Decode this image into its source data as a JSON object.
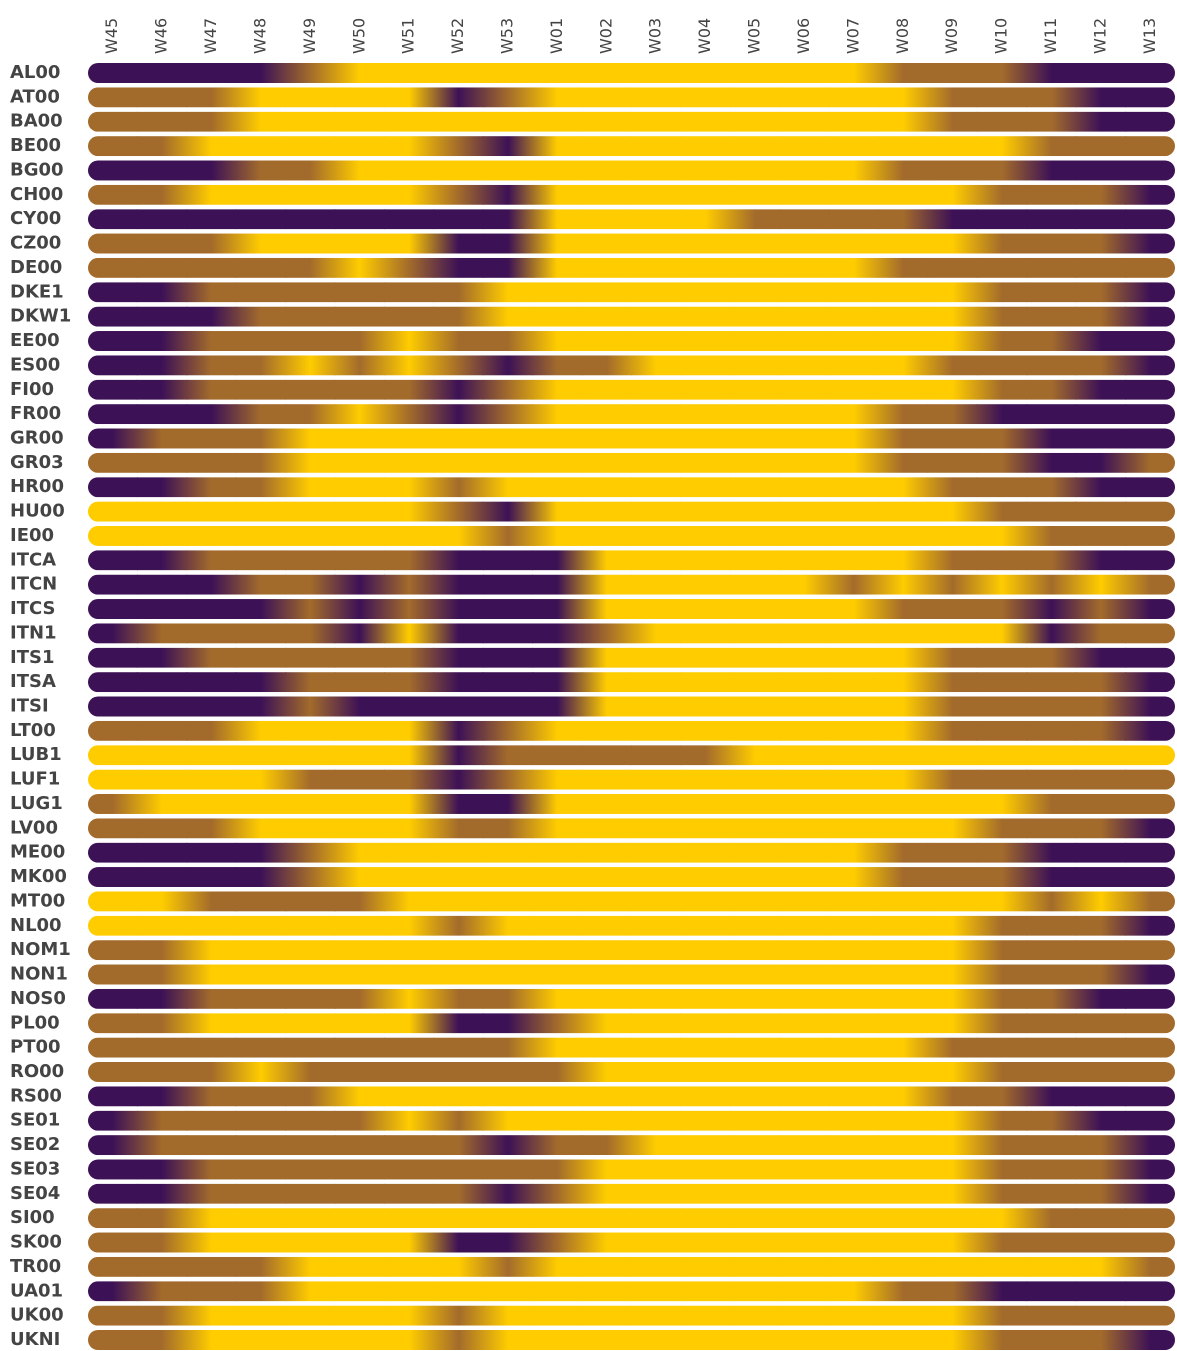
{
  "chart_data": {
    "type": "heatmap",
    "columns": [
      "W45",
      "W46",
      "W47",
      "W48",
      "W49",
      "W50",
      "W51",
      "W52",
      "W53",
      "W01",
      "W02",
      "W03",
      "W04",
      "W05",
      "W06",
      "W07",
      "W08",
      "W09",
      "W10",
      "W11",
      "W12",
      "W13"
    ],
    "rows": [
      "AL00",
      "AT00",
      "BA00",
      "BE00",
      "BG00",
      "CH00",
      "CY00",
      "CZ00",
      "DE00",
      "DKE1",
      "DKW1",
      "EE00",
      "ES00",
      "FI00",
      "FR00",
      "GR00",
      "GR03",
      "HR00",
      "HU00",
      "IE00",
      "ITCA",
      "ITCN",
      "ITCS",
      "ITN1",
      "ITS1",
      "ITSA",
      "ITSI",
      "LT00",
      "LUB1",
      "LUF1",
      "LUG1",
      "LV00",
      "ME00",
      "MK00",
      "MT00",
      "NL00",
      "NOM1",
      "NON1",
      "NOS0",
      "PL00",
      "PT00",
      "RO00",
      "RS00",
      "SE01",
      "SE02",
      "SE03",
      "SE04",
      "SI00",
      "SK00",
      "TR00",
      "UA01",
      "UK00",
      "UKNI"
    ],
    "colors": [
      "#3d1156",
      "#a36b2b",
      "#ffcc00"
    ],
    "values": [
      [
        0,
        0,
        0,
        0,
        1,
        2,
        2,
        2,
        2,
        2,
        2,
        2,
        2,
        2,
        2,
        2,
        1,
        1,
        1,
        0,
        0,
        0
      ],
      [
        1,
        1,
        1,
        2,
        2,
        2,
        2,
        0,
        1,
        2,
        2,
        2,
        2,
        2,
        2,
        2,
        2,
        1,
        1,
        1,
        0,
        0
      ],
      [
        1,
        1,
        1,
        2,
        2,
        2,
        2,
        2,
        2,
        2,
        2,
        2,
        2,
        2,
        2,
        2,
        2,
        1,
        1,
        1,
        0,
        0
      ],
      [
        1,
        1,
        2,
        2,
        2,
        2,
        2,
        1,
        0,
        2,
        2,
        2,
        2,
        2,
        2,
        2,
        2,
        2,
        2,
        1,
        1,
        1
      ],
      [
        0,
        0,
        0,
        1,
        1,
        2,
        2,
        2,
        2,
        2,
        2,
        2,
        2,
        2,
        2,
        2,
        1,
        1,
        1,
        0,
        0,
        0
      ],
      [
        1,
        1,
        2,
        2,
        2,
        2,
        2,
        1,
        0,
        2,
        2,
        2,
        2,
        2,
        2,
        2,
        2,
        2,
        1,
        1,
        1,
        0
      ],
      [
        0,
        0,
        0,
        0,
        0,
        0,
        0,
        0,
        0,
        2,
        2,
        2,
        2,
        1,
        1,
        1,
        1,
        0,
        0,
        0,
        0,
        0
      ],
      [
        1,
        1,
        1,
        2,
        2,
        2,
        2,
        0,
        0,
        2,
        2,
        2,
        2,
        2,
        2,
        2,
        2,
        2,
        1,
        1,
        1,
        0
      ],
      [
        1,
        1,
        1,
        1,
        1,
        2,
        1,
        0,
        0,
        2,
        2,
        2,
        2,
        2,
        2,
        2,
        1,
        1,
        1,
        1,
        1,
        1
      ],
      [
        0,
        0,
        1,
        1,
        1,
        1,
        1,
        1,
        2,
        2,
        2,
        2,
        2,
        2,
        2,
        2,
        2,
        2,
        1,
        1,
        1,
        0
      ],
      [
        0,
        0,
        0,
        1,
        1,
        1,
        1,
        1,
        2,
        2,
        2,
        2,
        2,
        2,
        2,
        2,
        2,
        2,
        1,
        1,
        1,
        0
      ],
      [
        0,
        0,
        1,
        1,
        1,
        1,
        2,
        1,
        1,
        2,
        2,
        2,
        2,
        2,
        2,
        2,
        2,
        2,
        1,
        1,
        0,
        0
      ],
      [
        0,
        0,
        1,
        1,
        2,
        1,
        2,
        1,
        0,
        1,
        1,
        2,
        2,
        2,
        2,
        2,
        2,
        1,
        1,
        1,
        1,
        0
      ],
      [
        0,
        0,
        1,
        1,
        1,
        1,
        1,
        0,
        1,
        2,
        2,
        2,
        2,
        2,
        2,
        2,
        2,
        2,
        1,
        1,
        0,
        0
      ],
      [
        0,
        0,
        0,
        1,
        1,
        2,
        1,
        0,
        1,
        2,
        2,
        2,
        2,
        2,
        2,
        2,
        1,
        1,
        0,
        0,
        0,
        0
      ],
      [
        0,
        1,
        1,
        1,
        2,
        2,
        2,
        2,
        2,
        2,
        2,
        2,
        2,
        2,
        2,
        2,
        1,
        1,
        1,
        0,
        0,
        0
      ],
      [
        1,
        1,
        1,
        1,
        2,
        2,
        2,
        2,
        2,
        2,
        2,
        2,
        2,
        2,
        2,
        2,
        1,
        1,
        1,
        0,
        0,
        1
      ],
      [
        0,
        0,
        1,
        1,
        2,
        2,
        2,
        1,
        2,
        2,
        2,
        2,
        2,
        2,
        2,
        2,
        2,
        1,
        1,
        1,
        0,
        0
      ],
      [
        2,
        2,
        2,
        2,
        2,
        2,
        2,
        1,
        0,
        2,
        2,
        2,
        2,
        2,
        2,
        2,
        2,
        2,
        1,
        1,
        1,
        1
      ],
      [
        2,
        2,
        2,
        2,
        2,
        2,
        2,
        2,
        1,
        2,
        2,
        2,
        2,
        2,
        2,
        2,
        2,
        2,
        2,
        1,
        1,
        1
      ],
      [
        0,
        0,
        1,
        1,
        1,
        1,
        1,
        0,
        0,
        0,
        2,
        2,
        2,
        2,
        2,
        2,
        2,
        1,
        1,
        1,
        0,
        0
      ],
      [
        0,
        0,
        0,
        1,
        1,
        0,
        1,
        0,
        0,
        0,
        2,
        2,
        2,
        2,
        2,
        1,
        2,
        1,
        2,
        1,
        2,
        1
      ],
      [
        0,
        0,
        0,
        0,
        1,
        0,
        1,
        0,
        0,
        0,
        2,
        2,
        2,
        2,
        2,
        2,
        1,
        1,
        1,
        0,
        1,
        0
      ],
      [
        0,
        1,
        1,
        1,
        1,
        0,
        2,
        0,
        0,
        0,
        1,
        2,
        2,
        2,
        2,
        2,
        2,
        2,
        2,
        0,
        1,
        1
      ],
      [
        0,
        0,
        1,
        1,
        1,
        1,
        1,
        0,
        0,
        0,
        2,
        2,
        2,
        2,
        2,
        2,
        2,
        1,
        1,
        1,
        0,
        0
      ],
      [
        0,
        0,
        0,
        0,
        1,
        1,
        1,
        0,
        0,
        0,
        2,
        2,
        2,
        2,
        2,
        2,
        2,
        1,
        1,
        1,
        1,
        0
      ],
      [
        0,
        0,
        0,
        0,
        1,
        0,
        0,
        0,
        0,
        0,
        2,
        2,
        2,
        2,
        2,
        2,
        2,
        1,
        1,
        1,
        1,
        0
      ],
      [
        1,
        1,
        1,
        2,
        2,
        2,
        2,
        0,
        1,
        2,
        2,
        2,
        2,
        2,
        2,
        2,
        2,
        1,
        1,
        1,
        1,
        0
      ],
      [
        2,
        2,
        2,
        2,
        2,
        2,
        2,
        0,
        1,
        1,
        1,
        1,
        1,
        2,
        2,
        2,
        2,
        2,
        2,
        2,
        2,
        2
      ],
      [
        2,
        2,
        2,
        2,
        1,
        1,
        1,
        0,
        1,
        2,
        2,
        2,
        2,
        2,
        2,
        2,
        2,
        1,
        1,
        1,
        1,
        1
      ],
      [
        1,
        2,
        2,
        2,
        2,
        2,
        2,
        0,
        0,
        2,
        2,
        2,
        2,
        2,
        2,
        2,
        2,
        2,
        2,
        1,
        1,
        1
      ],
      [
        1,
        1,
        1,
        2,
        2,
        2,
        2,
        1,
        1,
        2,
        2,
        2,
        2,
        2,
        2,
        2,
        2,
        2,
        1,
        1,
        1,
        0
      ],
      [
        0,
        0,
        0,
        0,
        1,
        2,
        2,
        2,
        2,
        2,
        2,
        2,
        2,
        2,
        2,
        2,
        1,
        1,
        1,
        0,
        0,
        0
      ],
      [
        0,
        0,
        0,
        0,
        1,
        2,
        2,
        2,
        2,
        2,
        2,
        2,
        2,
        2,
        2,
        2,
        1,
        1,
        1,
        0,
        0,
        0
      ],
      [
        2,
        2,
        1,
        1,
        1,
        1,
        2,
        2,
        2,
        2,
        2,
        2,
        2,
        2,
        2,
        2,
        2,
        2,
        2,
        1,
        2,
        1
      ],
      [
        2,
        2,
        2,
        2,
        2,
        2,
        2,
        1,
        2,
        2,
        2,
        2,
        2,
        2,
        2,
        2,
        2,
        2,
        1,
        1,
        1,
        0
      ],
      [
        1,
        1,
        2,
        2,
        2,
        2,
        2,
        2,
        2,
        2,
        2,
        2,
        2,
        2,
        2,
        2,
        2,
        2,
        1,
        1,
        1,
        1
      ],
      [
        1,
        1,
        2,
        2,
        2,
        2,
        2,
        2,
        2,
        2,
        2,
        2,
        2,
        2,
        2,
        2,
        2,
        2,
        1,
        1,
        1,
        0
      ],
      [
        0,
        0,
        1,
        1,
        1,
        1,
        2,
        1,
        1,
        2,
        2,
        2,
        2,
        2,
        2,
        2,
        2,
        2,
        1,
        1,
        0,
        0
      ],
      [
        1,
        1,
        2,
        2,
        2,
        2,
        2,
        0,
        0,
        1,
        2,
        2,
        2,
        2,
        2,
        2,
        2,
        2,
        1,
        1,
        1,
        1
      ],
      [
        1,
        1,
        1,
        1,
        1,
        1,
        1,
        1,
        1,
        2,
        2,
        2,
        2,
        2,
        2,
        2,
        2,
        1,
        1,
        1,
        1,
        1
      ],
      [
        1,
        1,
        1,
        2,
        1,
        1,
        1,
        1,
        1,
        1,
        2,
        2,
        2,
        2,
        2,
        2,
        2,
        2,
        1,
        1,
        1,
        1
      ],
      [
        0,
        0,
        1,
        1,
        1,
        2,
        2,
        2,
        2,
        2,
        2,
        2,
        2,
        2,
        2,
        2,
        2,
        1,
        1,
        0,
        0,
        0
      ],
      [
        0,
        1,
        1,
        1,
        1,
        1,
        2,
        1,
        2,
        2,
        2,
        2,
        2,
        2,
        2,
        2,
        2,
        2,
        1,
        1,
        0,
        0
      ],
      [
        0,
        1,
        1,
        1,
        1,
        1,
        1,
        1,
        0,
        1,
        1,
        2,
        2,
        2,
        2,
        2,
        2,
        2,
        1,
        1,
        1,
        0
      ],
      [
        0,
        0,
        1,
        1,
        1,
        1,
        1,
        1,
        1,
        1,
        2,
        2,
        2,
        2,
        2,
        2,
        2,
        2,
        1,
        1,
        1,
        0
      ],
      [
        0,
        0,
        1,
        1,
        1,
        1,
        1,
        1,
        0,
        1,
        2,
        2,
        2,
        2,
        2,
        2,
        2,
        2,
        1,
        1,
        1,
        0
      ],
      [
        1,
        1,
        2,
        2,
        2,
        2,
        2,
        2,
        2,
        2,
        2,
        2,
        2,
        2,
        2,
        2,
        2,
        2,
        2,
        1,
        1,
        1
      ],
      [
        1,
        1,
        2,
        2,
        2,
        2,
        2,
        0,
        0,
        1,
        2,
        2,
        2,
        2,
        2,
        2,
        2,
        2,
        1,
        1,
        1,
        1
      ],
      [
        1,
        1,
        1,
        1,
        2,
        2,
        2,
        2,
        1,
        2,
        2,
        2,
        2,
        2,
        2,
        2,
        2,
        2,
        2,
        2,
        2,
        1
      ],
      [
        0,
        1,
        1,
        1,
        2,
        2,
        2,
        2,
        2,
        2,
        2,
        2,
        2,
        2,
        2,
        2,
        1,
        1,
        0,
        0,
        0,
        0
      ],
      [
        1,
        1,
        2,
        2,
        2,
        2,
        2,
        1,
        2,
        2,
        2,
        2,
        2,
        2,
        2,
        2,
        2,
        2,
        1,
        1,
        1,
        1
      ],
      [
        1,
        1,
        2,
        2,
        2,
        2,
        2,
        1,
        2,
        2,
        2,
        2,
        2,
        2,
        2,
        2,
        2,
        2,
        1,
        1,
        1,
        0
      ]
    ]
  }
}
